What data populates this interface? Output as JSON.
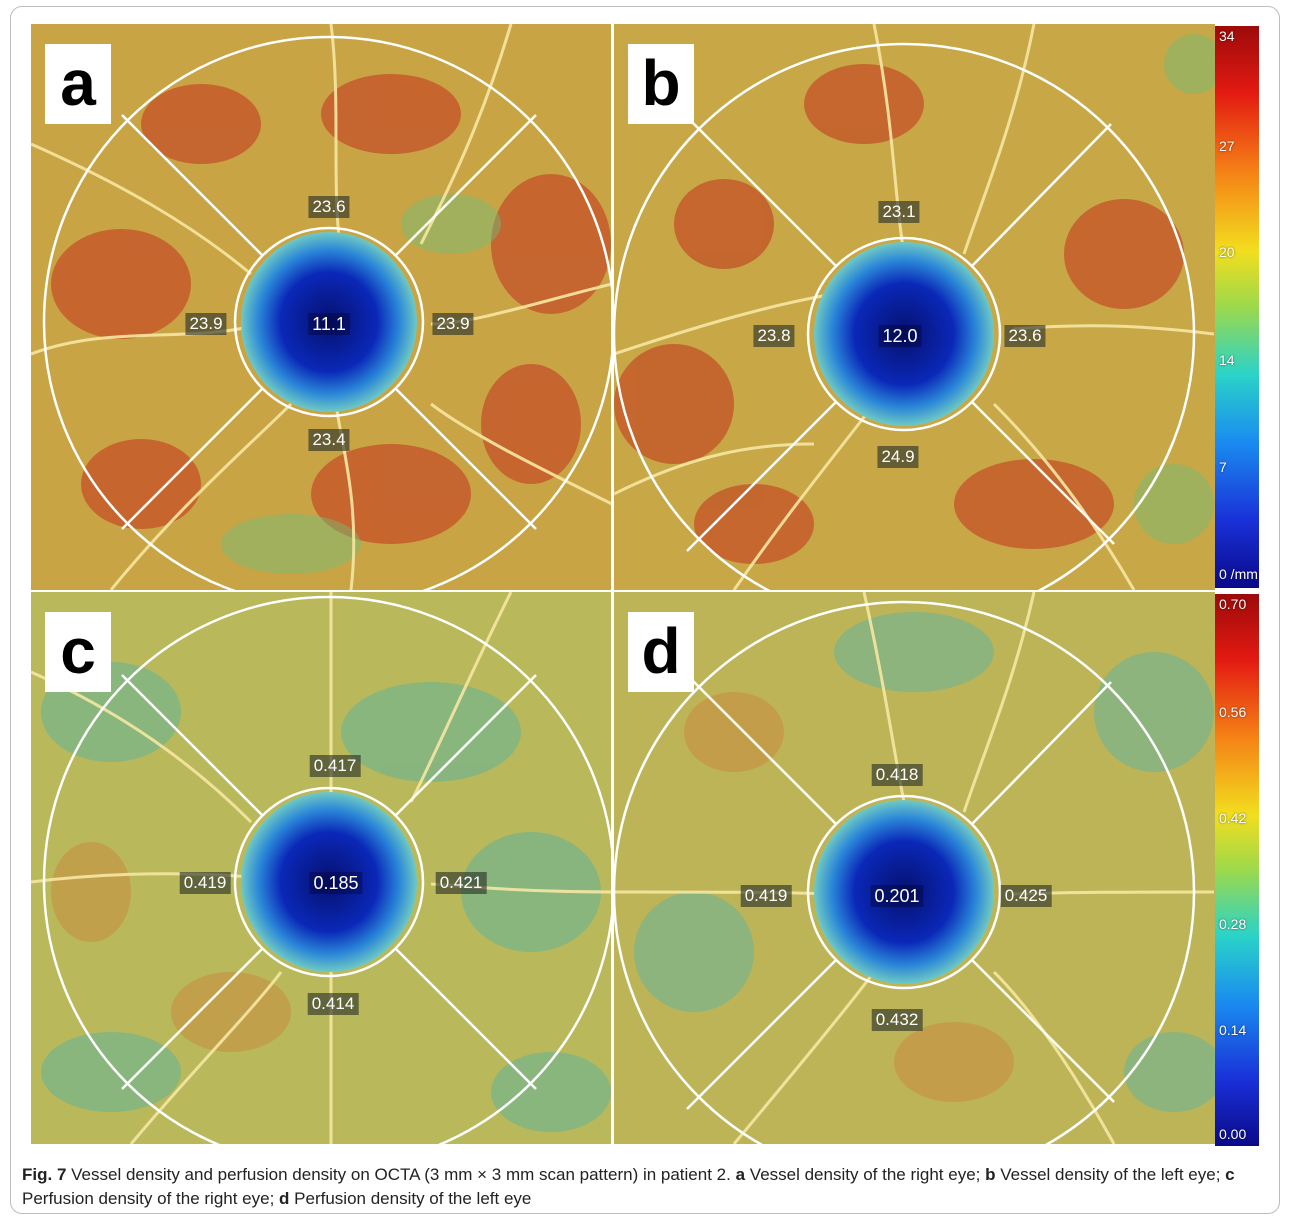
{
  "figure": {
    "panels": [
      {
        "id": "a",
        "letter": "a",
        "center": "11.1",
        "top": "23.6",
        "left": "23.9",
        "right": "23.9",
        "bottom": "23.4",
        "scheme": "red"
      },
      {
        "id": "b",
        "letter": "b",
        "center": "12.0",
        "top": "23.1",
        "left": "23.8",
        "right": "23.6",
        "bottom": "24.9",
        "scheme": "red"
      },
      {
        "id": "c",
        "letter": "c",
        "center": "0.185",
        "top": "0.417",
        "left": "0.419",
        "right": "0.421",
        "bottom": "0.414",
        "scheme": "green"
      },
      {
        "id": "d",
        "letter": "d",
        "center": "0.201",
        "top": "0.418",
        "left": "0.419",
        "right": "0.425",
        "bottom": "0.432",
        "scheme": "green"
      }
    ],
    "scale_vessel": {
      "ticks": [
        "34",
        "27",
        "20",
        "14",
        "7",
        "0 /mm"
      ]
    },
    "scale_perfusion": {
      "ticks": [
        "0.70",
        "0.56",
        "0.42",
        "0.28",
        "0.14",
        "0.00"
      ]
    },
    "caption": {
      "label": "Fig. 7",
      "text": "Vessel density and perfusion density on OCTA (3 mm × 3 mm scan pattern) in patient 2.",
      "a": "a",
      "a_text": "Vessel density of the right eye;",
      "b": "b",
      "b_text": "Vessel density of the left eye;",
      "c": "c",
      "c_text": "Perfusion density of the right eye;",
      "d": "d",
      "d_text": "Perfusion density of the left eye"
    }
  },
  "colors": {
    "vessel_bg": "#c8a74a",
    "perfusion_bg": "#b9b85a",
    "fovea": "#05127a",
    "grid_line": "#ffffff"
  }
}
